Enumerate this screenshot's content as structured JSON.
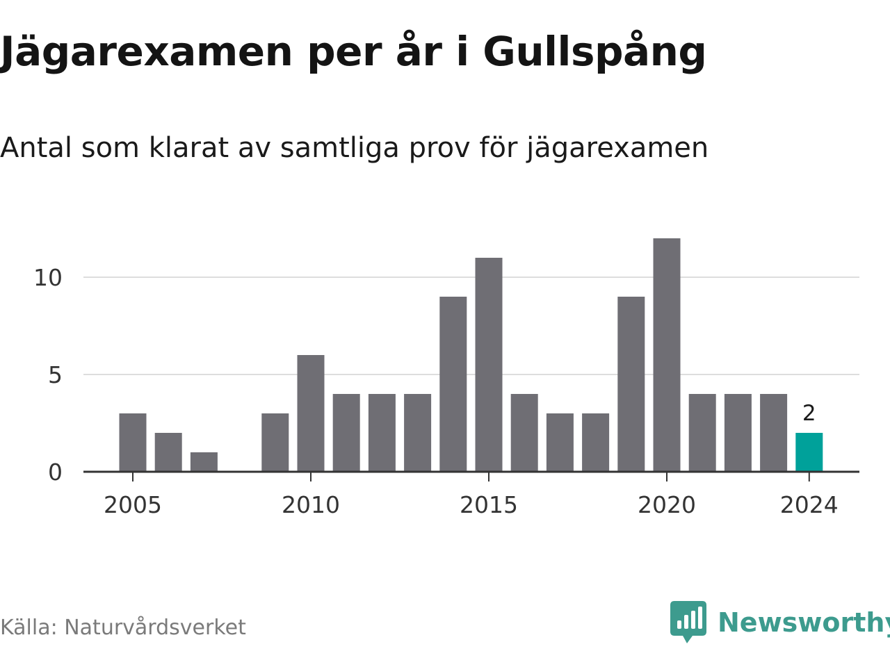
{
  "header": {
    "title": "Jägarexamen per år i Gullspång",
    "subtitle": "Antal som klarat av samtliga prov för jägarexamen"
  },
  "footer": {
    "source": "Källa: Naturvårdsverket",
    "brand": "Newsworthy",
    "brand_icon": "newsworthy-logo-icon"
  },
  "colors": {
    "bar": "#6f6e74",
    "highlight": "#00a19a",
    "grid": "#dddddd",
    "axis": "#333333",
    "brand": "#3d9b8e"
  },
  "chart_data": {
    "type": "bar",
    "x": [
      2005,
      2006,
      2007,
      2008,
      2009,
      2010,
      2011,
      2012,
      2013,
      2014,
      2015,
      2016,
      2017,
      2018,
      2019,
      2020,
      2021,
      2022,
      2023,
      2024
    ],
    "values": [
      3,
      2,
      1,
      0,
      3,
      6,
      4,
      4,
      4,
      9,
      11,
      4,
      3,
      3,
      9,
      12,
      4,
      4,
      4,
      2
    ],
    "xticks": [
      2005,
      2010,
      2015,
      2020,
      2024
    ],
    "yticks": [
      0,
      5,
      10
    ],
    "ylim": [
      0,
      12
    ],
    "highlight_index": 19,
    "highlight_label": "2",
    "grid": true
  }
}
